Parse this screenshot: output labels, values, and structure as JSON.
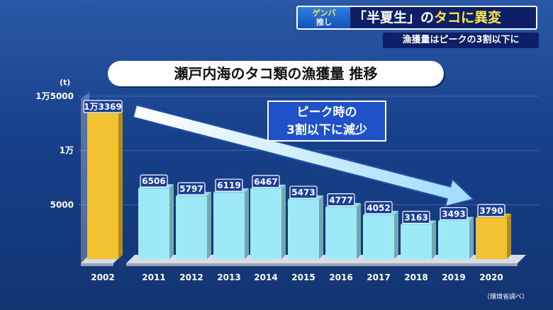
{
  "banner": {
    "badge_line1": "ゲンバ",
    "badge_line2": "推し",
    "headline_part1": "「半夏生」の",
    "headline_part2": "タコに異変",
    "subhead": "漁獲量はピークの3割以下に"
  },
  "callout": {
    "line1": "ピーク時の",
    "line2": "3割以下に減少"
  },
  "source": "（環境省調べ）",
  "colors": {
    "highlight_bar": "#f2c230",
    "normal_bar": "#9ee9f7",
    "arrow": "#ffffff"
  },
  "chart_data": {
    "type": "bar",
    "title": "瀬戸内海のタコ類の漁獲量 推移",
    "unit": "(t)",
    "categories": [
      "2002",
      "2011",
      "2012",
      "2013",
      "2014",
      "2015",
      "2016",
      "2017",
      "2018",
      "2019",
      "2020"
    ],
    "values": [
      13369,
      6506,
      5797,
      6119,
      6467,
      5473,
      4777,
      4052,
      3163,
      3493,
      3790
    ],
    "value_labels": [
      "1万3369",
      "6506",
      "5797",
      "6119",
      "6467",
      "5473",
      "4777",
      "4052",
      "3163",
      "3493",
      "3790"
    ],
    "highlighted": [
      "2002",
      "2020"
    ],
    "yticks": [
      {
        "value": 5000,
        "label": "5000"
      },
      {
        "value": 10000,
        "label": "1万"
      },
      {
        "value": 15000,
        "label": "1万5000"
      }
    ],
    "ylim": [
      0,
      15000
    ],
    "axis_break_after": "2002",
    "annotation": "ピーク時の3割以下に減少"
  }
}
